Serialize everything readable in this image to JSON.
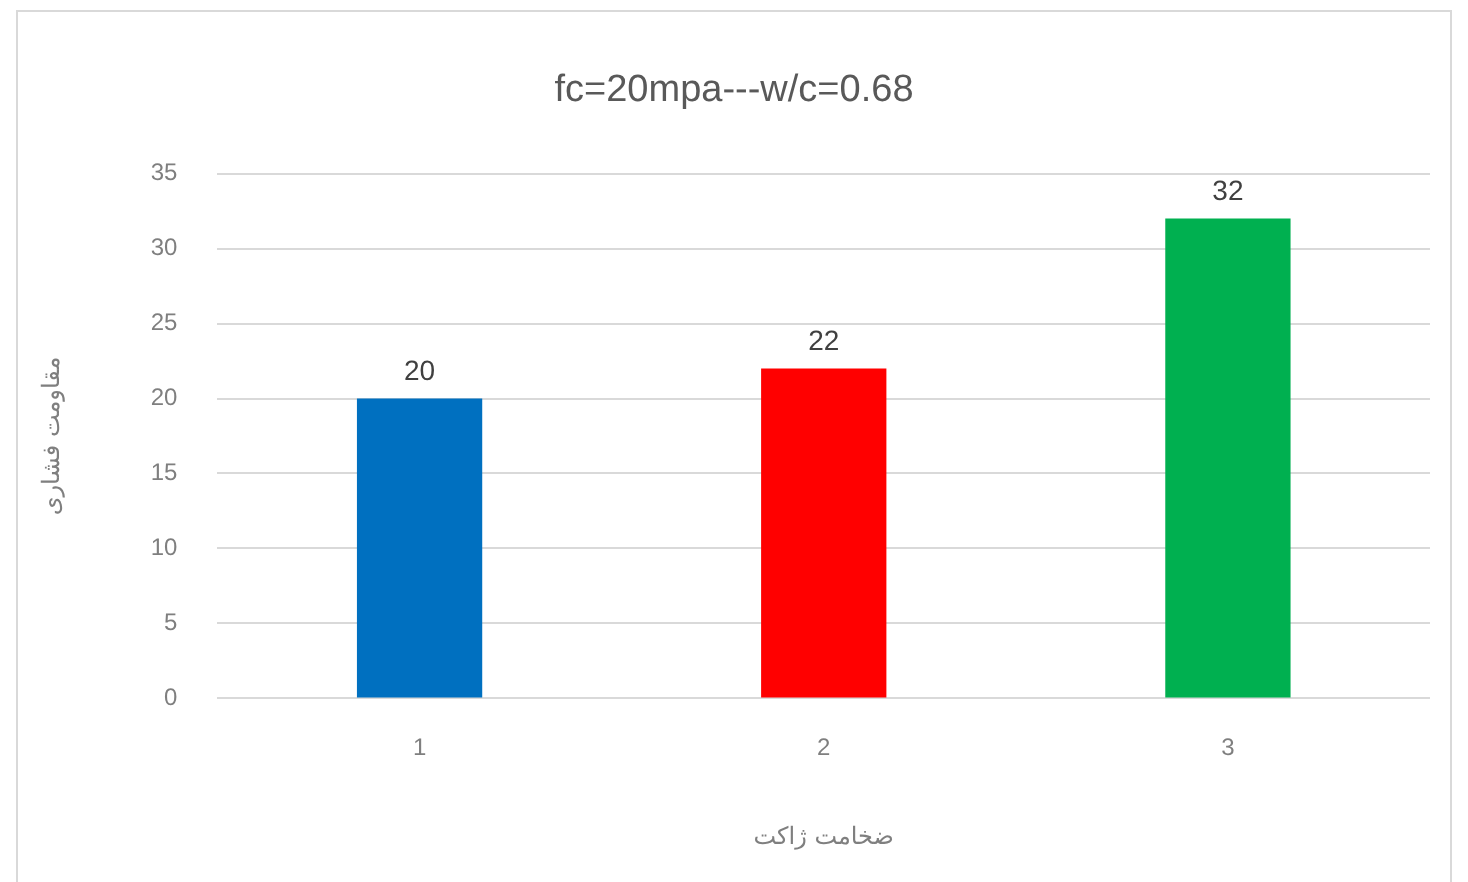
{
  "chart_data": {
    "type": "bar",
    "title": "fc=20mpa---w/c=0.68",
    "xlabel": "ضخامت ژاکت",
    "ylabel": "مقاومت فشاری",
    "categories": [
      "1",
      "2",
      "3"
    ],
    "values": [
      20,
      22,
      32
    ],
    "colors": [
      "#0070c0",
      "#ff0000",
      "#00b050"
    ],
    "ylim": [
      0,
      35
    ],
    "yticks": [
      0,
      5,
      10,
      15,
      20,
      25,
      30,
      35
    ],
    "grid": "y",
    "data_labels": true
  }
}
